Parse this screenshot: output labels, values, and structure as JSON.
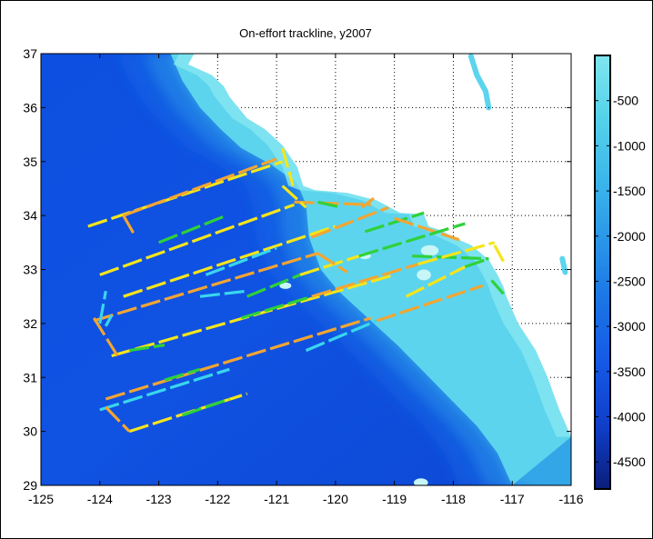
{
  "window": {
    "border": "#000000",
    "background": "#ffffff"
  },
  "chart_data": {
    "type": "scatter",
    "title": "On-effort trackline, y2007",
    "xlabel": "",
    "ylabel": "",
    "xlim": [
      -125,
      -116
    ],
    "ylim": [
      29,
      37
    ],
    "xticks": [
      -125,
      -124,
      -123,
      -122,
      -121,
      -120,
      -119,
      -118,
      -117,
      -116
    ],
    "yticks": [
      29,
      30,
      31,
      32,
      33,
      34,
      35,
      36,
      37
    ],
    "x_tick_labels": [
      "-125",
      "-124",
      "-123",
      "-122",
      "-121",
      "-120",
      "-119",
      "-118",
      "-117",
      "-116"
    ],
    "y_tick_labels": [
      "29",
      "30",
      "31",
      "32",
      "33",
      "34",
      "35",
      "36",
      "37"
    ],
    "grid": "dotted, on land",
    "land_color": "#ffffff",
    "colorbar": {
      "label": "",
      "range": [
        -4800,
        0
      ],
      "ticks": [
        -500,
        -1000,
        -1500,
        -2000,
        -2500,
        -3000,
        -3500,
        -4000,
        -4500
      ],
      "tick_labels": [
        "-500",
        "-1000",
        "-1500",
        "-2000",
        "-2500",
        "-3000",
        "-3500",
        "-4000",
        "-4500"
      ],
      "colors": [
        "#0b1e7a",
        "#0f3ec8",
        "#1558e6",
        "#1a74e6",
        "#2a95e8",
        "#3cb7ea",
        "#55d2ea",
        "#7fe6ee"
      ]
    },
    "coastline": [
      [
        -122.4,
        37
      ],
      [
        -122.5,
        36.8
      ],
      [
        -122.1,
        36.6
      ],
      [
        -121.9,
        36.4
      ],
      [
        -121.8,
        36.2
      ],
      [
        -121.5,
        35.8
      ],
      [
        -121.2,
        35.6
      ],
      [
        -120.9,
        35.3
      ],
      [
        -120.65,
        34.9
      ],
      [
        -120.55,
        34.55
      ],
      [
        -120.35,
        34.47
      ],
      [
        -119.8,
        34.42
      ],
      [
        -119.3,
        34.28
      ],
      [
        -118.9,
        34.05
      ],
      [
        -118.5,
        34.02
      ],
      [
        -118.42,
        33.8
      ],
      [
        -118.2,
        33.72
      ],
      [
        -118.0,
        33.6
      ],
      [
        -117.7,
        33.45
      ],
      [
        -117.4,
        33.18
      ],
      [
        -117.25,
        32.9
      ],
      [
        -117.15,
        32.68
      ],
      [
        -117.1,
        32.5
      ],
      [
        -116.9,
        32.0
      ],
      [
        -116.6,
        31.5
      ],
      [
        -116.4,
        31.0
      ],
      [
        -116.2,
        30.4
      ],
      [
        -116.0,
        29.9
      ]
    ],
    "shelf_edge": [
      [
        -122.8,
        37
      ],
      [
        -122.6,
        36.5
      ],
      [
        -122.3,
        36.0
      ],
      [
        -121.95,
        35.6
      ],
      [
        -121.6,
        35.25
      ],
      [
        -121.1,
        34.95
      ],
      [
        -120.65,
        34.6
      ],
      [
        -120.5,
        34.2
      ],
      [
        -120.45,
        33.6
      ],
      [
        -120.25,
        33.0
      ],
      [
        -119.95,
        32.6
      ],
      [
        -119.35,
        32.0
      ],
      [
        -118.95,
        31.6
      ],
      [
        -118.5,
        31.1
      ],
      [
        -118.05,
        30.6
      ],
      [
        -117.6,
        30.1
      ],
      [
        -117.25,
        29.6
      ],
      [
        -117.0,
        29
      ]
    ],
    "islands": [
      [
        -118.4,
        33.35,
        0.15,
        0.1
      ],
      [
        -118.5,
        32.9,
        0.12,
        0.1
      ],
      [
        -119.5,
        33.25,
        0.1,
        0.06
      ],
      [
        -118.55,
        29.05,
        0.12,
        0.08
      ],
      [
        -120.85,
        32.7,
        0.1,
        0.06
      ]
    ],
    "inland_features": [
      [
        [
          -117.7,
          36.95
        ],
        [
          -117.6,
          36.6
        ],
        [
          -117.45,
          36.3
        ],
        [
          -117.4,
          36.0
        ]
      ],
      [
        [
          -116.15,
          33.2
        ],
        [
          -116.1,
          32.95
        ]
      ]
    ],
    "series_colors": {
      "yellow": "#f5e51c",
      "orange": "#f2a533",
      "green": "#2fd13a",
      "cyan": "#39d6ee"
    },
    "tracks": [
      {
        "color": "yellow",
        "points": [
          [
            -124.2,
            33.8
          ],
          [
            -120.9,
            35.0
          ]
        ]
      },
      {
        "color": "orange",
        "points": [
          [
            -123.6,
            34.0
          ],
          [
            -121.0,
            35.05
          ]
        ]
      },
      {
        "color": "orange",
        "points": [
          [
            -123.6,
            34.0
          ],
          [
            -123.4,
            33.62
          ]
        ]
      },
      {
        "color": "yellow",
        "points": [
          [
            -124.0,
            32.9
          ],
          [
            -120.7,
            34.2
          ]
        ]
      },
      {
        "color": "green",
        "points": [
          [
            -123.0,
            33.5
          ],
          [
            -121.9,
            33.98
          ]
        ]
      },
      {
        "color": "orange",
        "points": [
          [
            -120.7,
            34.25
          ],
          [
            -119.4,
            34.2
          ]
        ]
      },
      {
        "color": "yellow",
        "points": [
          [
            -120.9,
            34.55
          ],
          [
            -120.5,
            34.15
          ]
        ]
      },
      {
        "color": "green",
        "points": [
          [
            -120.3,
            34.25
          ],
          [
            -119.9,
            34.15
          ]
        ]
      },
      {
        "color": "yellow",
        "points": [
          [
            -120.9,
            35.25
          ],
          [
            -120.72,
            34.55
          ]
        ]
      },
      {
        "color": "orange",
        "points": [
          [
            -119.55,
            34.15
          ],
          [
            -119.35,
            34.32
          ]
        ]
      },
      {
        "color": "yellow",
        "points": [
          [
            -123.6,
            32.5
          ],
          [
            -120.0,
            33.8
          ]
        ]
      },
      {
        "color": "cyan",
        "points": [
          [
            -122.2,
            32.9
          ],
          [
            -121.0,
            33.4
          ]
        ]
      },
      {
        "color": "orange",
        "points": [
          [
            -120.4,
            33.6
          ],
          [
            -119.1,
            34.15
          ]
        ]
      },
      {
        "color": "green",
        "points": [
          [
            -119.5,
            33.7
          ],
          [
            -118.5,
            34.05
          ]
        ]
      },
      {
        "color": "orange",
        "points": [
          [
            -119.0,
            33.95
          ],
          [
            -117.9,
            33.55
          ]
        ]
      },
      {
        "color": "orange",
        "points": [
          [
            -124.1,
            32.05
          ],
          [
            -120.3,
            33.3
          ]
        ]
      },
      {
        "color": "cyan",
        "points": [
          [
            -122.3,
            32.5
          ],
          [
            -121.5,
            32.6
          ]
        ]
      },
      {
        "color": "green",
        "points": [
          [
            -121.5,
            32.5
          ],
          [
            -120.6,
            32.9
          ]
        ]
      },
      {
        "color": "yellow",
        "points": [
          [
            -120.6,
            32.9
          ],
          [
            -119.6,
            33.25
          ]
        ]
      },
      {
        "color": "green",
        "points": [
          [
            -119.6,
            33.25
          ],
          [
            -117.8,
            33.85
          ]
        ]
      },
      {
        "color": "orange",
        "points": [
          [
            -120.3,
            33.3
          ],
          [
            -119.8,
            32.95
          ]
        ]
      },
      {
        "color": "green",
        "points": [
          [
            -118.7,
            33.25
          ],
          [
            -117.4,
            33.2
          ]
        ]
      },
      {
        "color": "yellow",
        "points": [
          [
            -123.8,
            31.4
          ],
          [
            -119.0,
            32.9
          ]
        ]
      },
      {
        "color": "green",
        "points": [
          [
            -123.5,
            31.5
          ],
          [
            -122.9,
            31.6
          ]
        ]
      },
      {
        "color": "green",
        "points": [
          [
            -121.6,
            32.1
          ],
          [
            -120.4,
            32.5
          ]
        ]
      },
      {
        "color": "orange",
        "points": [
          [
            -120.4,
            32.5
          ],
          [
            -118.6,
            33.1
          ]
        ]
      },
      {
        "color": "yellow",
        "points": [
          [
            -118.6,
            33.1
          ],
          [
            -117.3,
            33.5
          ]
        ]
      },
      {
        "color": "orange",
        "points": [
          [
            -124.1,
            32.1
          ],
          [
            -123.7,
            31.4
          ]
        ]
      },
      {
        "color": "cyan",
        "points": [
          [
            -124.0,
            32.0
          ],
          [
            -123.9,
            32.6
          ]
        ]
      },
      {
        "color": "cyan",
        "points": [
          [
            -123.9,
            31.95
          ],
          [
            -123.8,
            32.15
          ]
        ]
      },
      {
        "color": "orange",
        "points": [
          [
            -123.9,
            30.6
          ],
          [
            -119.4,
            32.1
          ]
        ]
      },
      {
        "color": "green",
        "points": [
          [
            -122.9,
            30.95
          ],
          [
            -122.3,
            31.15
          ]
        ]
      },
      {
        "color": "cyan",
        "points": [
          [
            -120.5,
            31.5
          ],
          [
            -119.3,
            32.05
          ]
        ]
      },
      {
        "color": "orange",
        "points": [
          [
            -119.3,
            32.05
          ],
          [
            -117.5,
            32.7
          ]
        ]
      },
      {
        "color": "yellow",
        "points": [
          [
            -118.8,
            32.5
          ],
          [
            -117.8,
            33.05
          ]
        ]
      },
      {
        "color": "green",
        "points": [
          [
            -117.8,
            33.05
          ],
          [
            -117.4,
            33.2
          ]
        ]
      },
      {
        "color": "cyan",
        "points": [
          [
            -124.0,
            30.4
          ],
          [
            -121.8,
            31.15
          ]
        ]
      },
      {
        "color": "yellow",
        "points": [
          [
            -123.5,
            30.0
          ],
          [
            -121.5,
            30.7
          ]
        ]
      },
      {
        "color": "orange",
        "points": [
          [
            -123.9,
            30.45
          ],
          [
            -123.5,
            30.0
          ]
        ]
      },
      {
        "color": "green",
        "points": [
          [
            -122.6,
            30.3
          ],
          [
            -121.8,
            30.6
          ]
        ]
      },
      {
        "color": "green",
        "points": [
          [
            -117.35,
            32.8
          ],
          [
            -117.15,
            32.55
          ]
        ]
      },
      {
        "color": "yellow",
        "points": [
          [
            -117.3,
            33.45
          ],
          [
            -117.15,
            33.15
          ]
        ]
      }
    ]
  }
}
